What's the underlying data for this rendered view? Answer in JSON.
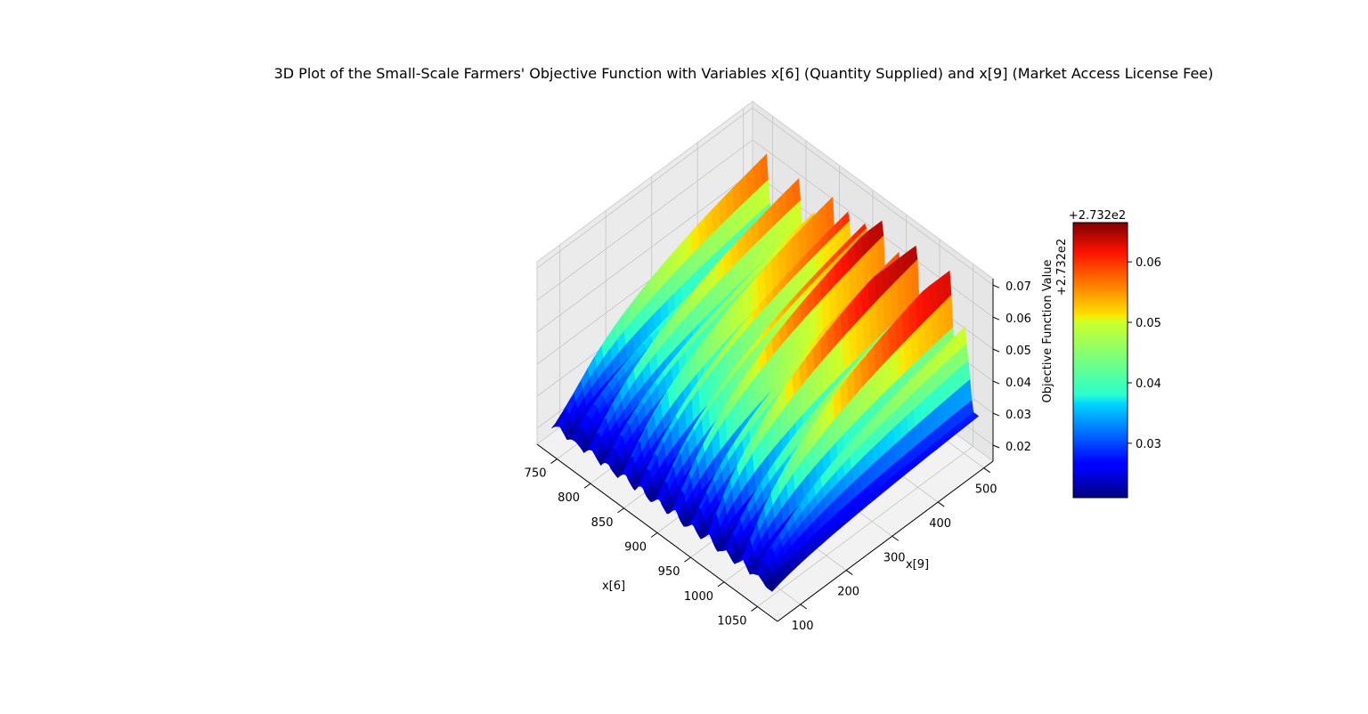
{
  "chart_data": {
    "type": "surface3d",
    "title": "3D Plot of the Small-Scale Farmers' Objective Function with Variables x[6] (Quantity Supplied) and x[9] (Market Access License Fee)",
    "xlabel": "x[6]",
    "ylabel": "x[9]",
    "zlabel": "Objective Function Value",
    "x_ticks": [
      750,
      800,
      850,
      900,
      950,
      1000,
      1050
    ],
    "y_ticks": [
      100,
      200,
      300,
      400,
      500
    ],
    "z_ticks": [
      0.02,
      0.03,
      0.04,
      0.05,
      0.06,
      0.07
    ],
    "z_ticks_labels": [
      "0.02",
      "0.03",
      "0.04",
      "0.05",
      "0.06",
      "0.07"
    ],
    "xlim": [
      720,
      1080
    ],
    "ylim": [
      50,
      520
    ],
    "zlim": [
      0.015,
      0.072
    ],
    "offset_label": "+2.732e2",
    "colormap": "jet",
    "colorbar": {
      "ticks": [
        "0.03",
        "0.04",
        "0.05",
        "0.06"
      ],
      "tick_values": [
        0.03,
        0.04,
        0.05,
        0.06
      ],
      "range": [
        0.021,
        0.0665
      ],
      "offset_label": "+2.732e2"
    },
    "surface": {
      "x_range": [
        735,
        1065
      ],
      "y_range": [
        60,
        510
      ],
      "ridges_x": [
        748,
        772,
        797,
        822,
        847,
        872,
        897,
        922,
        947,
        972,
        997,
        1022,
        1045
      ],
      "z_min": 0.021,
      "z_max": 0.0665
    },
    "grid": true
  }
}
